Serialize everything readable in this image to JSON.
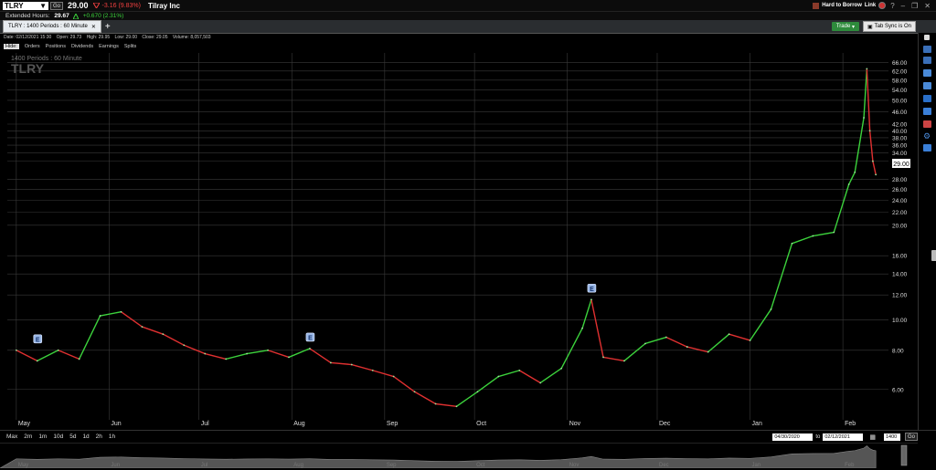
{
  "quote": {
    "symbol": "TLRY",
    "go_label": "Go",
    "price": "29.00",
    "change": "-3.16 (9.83%)",
    "company": "Tilray Inc",
    "hard_to_borrow": "Hard to Borrow",
    "link_label": "Link"
  },
  "extended": {
    "label": "Extended Hours:",
    "price": "29.67",
    "change": "+0.670 (2.31%)"
  },
  "tabs": [
    {
      "label": "TLRY : 1400 Periods : 60 Minute"
    }
  ],
  "toolbar": {
    "trade_label": "Trade",
    "sync_label": "Tab Sync is On"
  },
  "date_info": {
    "date": "Date: 02/12/2021 15:30",
    "open": "Open: 29.73",
    "high": "High: 29.95",
    "low": "Low: 29.00",
    "close": "Close: 29.05",
    "volume": "Volume: 8,057,503"
  },
  "menu": {
    "items": [
      "Hide:",
      "Orders",
      "Positions",
      "Dividends",
      "Earnings",
      "Splits"
    ]
  },
  "chart_labels": {
    "periods": "1400 Periods : 60 Minute",
    "symbol": "TLRY",
    "earnings_marker": "E"
  },
  "range": {
    "buttons": [
      "Max",
      "2m",
      "1m",
      "10d",
      "5d",
      "1d",
      "2h",
      "1h"
    ],
    "from": "04/30/2020",
    "to_label": "to",
    "to": "02/12/2021",
    "periods": "1400",
    "go": "Go"
  },
  "navigator_months": [
    "May",
    "Jun",
    "Jul",
    "Aug",
    "Sep",
    "Oct",
    "Nov",
    "Dec",
    "Jan",
    "Feb"
  ],
  "chart_data": {
    "type": "line",
    "title": "",
    "xlabel": "",
    "ylabel": "",
    "x_months": [
      "May",
      "Jun",
      "Jul",
      "Aug",
      "Sep",
      "Oct",
      "Nov",
      "Dec",
      "Jan",
      "Feb"
    ],
    "y_scale": "log",
    "y_ticks": [
      6.0,
      8.0,
      10.0,
      12.0,
      14.0,
      16.0,
      20.0,
      22.0,
      24.0,
      26.0,
      28.0,
      32.0,
      34.0,
      36.0,
      38.0,
      40.0,
      42.0,
      46.0,
      50.0,
      54.0,
      58.0,
      62.0,
      66.0
    ],
    "y_tick_labels": [
      "6.00",
      "8.00",
      "10.00",
      "12.00",
      "14.00",
      "16.00",
      "20.00",
      "22.00",
      "24.00",
      "26.00",
      "28.00",
      "32.00",
      "34.00",
      "36.00",
      "38.00",
      "40.00",
      "42.00",
      "46.00",
      "50.00",
      "54.00",
      "58.00",
      "62.00",
      "66.00"
    ],
    "ylim": [
      5.0,
      68.0
    ],
    "last_price": "29.00",
    "grid": true,
    "series": [
      {
        "x": [
          "2020-05-01",
          "2020-05-08",
          "2020-05-15",
          "2020-05-22",
          "2020-05-29",
          "2020-06-05",
          "2020-06-12",
          "2020-06-19",
          "2020-06-26",
          "2020-07-03",
          "2020-07-10",
          "2020-07-17",
          "2020-07-24",
          "2020-07-31",
          "2020-08-07",
          "2020-08-14",
          "2020-08-21",
          "2020-08-28",
          "2020-09-04",
          "2020-09-11",
          "2020-09-18",
          "2020-09-25",
          "2020-10-02",
          "2020-10-09",
          "2020-10-16",
          "2020-10-23",
          "2020-10-30",
          "2020-11-06",
          "2020-11-09",
          "2020-11-13",
          "2020-11-20",
          "2020-11-27",
          "2020-12-04",
          "2020-12-11",
          "2020-12-18",
          "2020-12-25",
          "2021-01-01",
          "2021-01-08",
          "2021-01-15",
          "2021-01-22",
          "2021-01-29",
          "2021-02-03",
          "2021-02-05",
          "2021-02-08",
          "2021-02-09",
          "2021-02-10",
          "2021-02-11",
          "2021-02-12"
        ],
        "values": [
          8.0,
          7.4,
          8.0,
          7.5,
          10.3,
          10.6,
          9.5,
          9.0,
          8.3,
          7.8,
          7.5,
          7.8,
          8.0,
          7.6,
          8.1,
          7.3,
          7.2,
          6.9,
          6.6,
          5.9,
          5.4,
          5.3,
          5.9,
          6.6,
          6.9,
          6.3,
          7.0,
          9.4,
          11.6,
          7.6,
          7.4,
          8.4,
          8.8,
          8.2,
          7.9,
          9.0,
          8.6,
          10.8,
          17.5,
          18.5,
          19.0,
          27.0,
          29.5,
          44.0,
          63.0,
          40.0,
          32.0,
          29.0
        ]
      }
    ]
  }
}
